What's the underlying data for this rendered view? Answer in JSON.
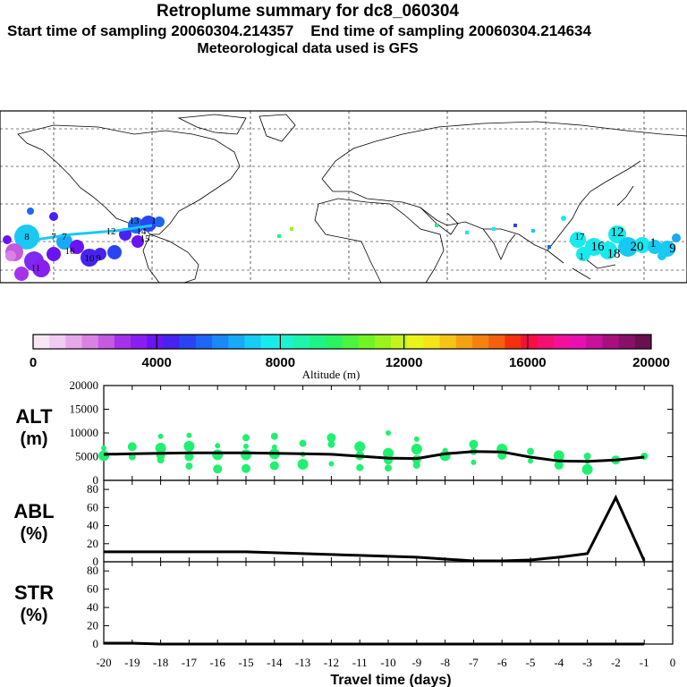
{
  "header": {
    "title": "Retroplume summary for dc8_060304",
    "start_label": "Start time of sampling 20060304.214357",
    "end_label": "End time of sampling 20060304.214634",
    "met_label": "Meteorological data used is GFS"
  },
  "colorbar": {
    "title": "Altitude (m)",
    "ticks": [
      "0",
      "4000",
      "8000",
      "12000",
      "16000",
      "20000"
    ],
    "colors": [
      "#f6e6f6",
      "#efccf0",
      "#e6a8ea",
      "#d982e4",
      "#c45ae0",
      "#a532e8",
      "#8a1ef2",
      "#6a14f4",
      "#4822f2",
      "#2a44f4",
      "#1e66f6",
      "#1a88f6",
      "#18aaf6",
      "#16ccf4",
      "#18eaee",
      "#1cf4d0",
      "#1ef4ac",
      "#20f488",
      "#2af464",
      "#4af440",
      "#70f424",
      "#9af41c",
      "#c4f41c",
      "#e8f41a",
      "#f4e418",
      "#f4c416",
      "#f4a214",
      "#f48212",
      "#f46010",
      "#f4300e",
      "#f41040",
      "#f41070",
      "#f4109a",
      "#e810b0",
      "#c8109a",
      "#a81080",
      "#881068",
      "#681050"
    ]
  },
  "map_labels": [
    "8",
    "7",
    "7",
    "16",
    "12",
    "13",
    "14",
    "15",
    "11",
    "10",
    "9",
    "1",
    "12",
    "16",
    "18",
    "20",
    "1",
    "9",
    "17",
    "1"
  ],
  "chart_data": [
    {
      "type": "scatter",
      "name": "ALT",
      "title": "",
      "ylabel": "ALT",
      "ylabel_unit": "(m)",
      "xlabel": "Travel time (days)",
      "xlim": [
        -20,
        0
      ],
      "ylim": [
        0,
        20000
      ],
      "yticks": [
        "0",
        "5000",
        "10000",
        "15000",
        "20000"
      ],
      "xticks": [
        "-20",
        "-19",
        "-18",
        "-17",
        "-16",
        "-15",
        "-14",
        "-13",
        "-12",
        "-11",
        "-10",
        "-9",
        "-8",
        "-7",
        "-6",
        "-5",
        "-4",
        "-3",
        "-2",
        "-1",
        "0"
      ],
      "median_line": {
        "x": [
          -20,
          -19,
          -18,
          -17,
          -16,
          -15,
          -14,
          -13,
          -12,
          -11,
          -10,
          -9,
          -8,
          -7,
          -6,
          -5,
          -4,
          -3,
          -2,
          -1
        ],
        "y": [
          5500,
          5600,
          5700,
          5800,
          5800,
          5800,
          5700,
          5600,
          5500,
          5100,
          4700,
          4600,
          5600,
          6100,
          6000,
          4900,
          4100,
          4000,
          4300,
          4900
        ]
      },
      "points": [
        {
          "x": -20,
          "y": 6800
        },
        {
          "x": -20,
          "y": 5200
        },
        {
          "x": -19,
          "y": 7100
        },
        {
          "x": -19,
          "y": 5000
        },
        {
          "x": -18,
          "y": 9300
        },
        {
          "x": -18,
          "y": 6800
        },
        {
          "x": -18,
          "y": 5300
        },
        {
          "x": -18,
          "y": 4300
        },
        {
          "x": -17,
          "y": 9500
        },
        {
          "x": -17,
          "y": 7200
        },
        {
          "x": -17,
          "y": 5000
        },
        {
          "x": -17,
          "y": 3000
        },
        {
          "x": -16,
          "y": 7300
        },
        {
          "x": -16,
          "y": 5400
        },
        {
          "x": -16,
          "y": 2400
        },
        {
          "x": -15,
          "y": 9000
        },
        {
          "x": -15,
          "y": 7200
        },
        {
          "x": -15,
          "y": 5400
        },
        {
          "x": -15,
          "y": 2500
        },
        {
          "x": -14,
          "y": 9300
        },
        {
          "x": -14,
          "y": 7000
        },
        {
          "x": -14,
          "y": 5600
        },
        {
          "x": -14,
          "y": 3100
        },
        {
          "x": -13,
          "y": 7800
        },
        {
          "x": -13,
          "y": 5500
        },
        {
          "x": -13,
          "y": 3400
        },
        {
          "x": -12,
          "y": 9000
        },
        {
          "x": -12,
          "y": 7600
        },
        {
          "x": -12,
          "y": 3500
        },
        {
          "x": -11,
          "y": 7100
        },
        {
          "x": -11,
          "y": 5200
        },
        {
          "x": -11,
          "y": 2700
        },
        {
          "x": -10,
          "y": 10000
        },
        {
          "x": -10,
          "y": 5700
        },
        {
          "x": -10,
          "y": 4300
        },
        {
          "x": -10,
          "y": 2600
        },
        {
          "x": -9,
          "y": 8700
        },
        {
          "x": -9,
          "y": 6600
        },
        {
          "x": -9,
          "y": 4400
        },
        {
          "x": -9,
          "y": 3200
        },
        {
          "x": -8,
          "y": 6300
        },
        {
          "x": -8,
          "y": 5200
        },
        {
          "x": -7,
          "y": 7600
        },
        {
          "x": -7,
          "y": 6100
        },
        {
          "x": -7,
          "y": 3800
        },
        {
          "x": -6,
          "y": 6600
        },
        {
          "x": -6,
          "y": 5300
        },
        {
          "x": -5,
          "y": 6100
        },
        {
          "x": -5,
          "y": 4100
        },
        {
          "x": -4,
          "y": 5200
        },
        {
          "x": -4,
          "y": 3200
        },
        {
          "x": -3,
          "y": 5100
        },
        {
          "x": -3,
          "y": 4000
        },
        {
          "x": -3,
          "y": 2300
        },
        {
          "x": -2,
          "y": 4300
        },
        {
          "x": -1,
          "y": 5100
        }
      ]
    },
    {
      "type": "line",
      "name": "ABL",
      "ylabel": "ABL",
      "ylabel_unit": "(%)",
      "xlim": [
        -20,
        0
      ],
      "ylim": [
        0,
        90
      ],
      "yticks": [
        "0",
        "20",
        "40",
        "60",
        "80"
      ],
      "x": [
        -20,
        -19,
        -18,
        -17,
        -16,
        -15,
        -14,
        -13,
        -12,
        -11,
        -10,
        -9,
        -8,
        -7,
        -6,
        -5,
        -4,
        -3,
        -2,
        -1
      ],
      "y": [
        11,
        11,
        11,
        11,
        11,
        11,
        10,
        9,
        8,
        7,
        6,
        5,
        3,
        1,
        1,
        2,
        5,
        9,
        71,
        1
      ]
    },
    {
      "type": "line",
      "name": "STR",
      "ylabel": "STR",
      "ylabel_unit": "(%)",
      "xlim": [
        -20,
        0
      ],
      "ylim": [
        0,
        90
      ],
      "yticks": [
        "0",
        "20",
        "40",
        "60",
        "80"
      ],
      "x": [
        -20,
        -19,
        -18,
        -17,
        -16,
        -15,
        -14,
        -13,
        -12,
        -11,
        -10,
        -9,
        -8,
        -7,
        -6,
        -5,
        -4,
        -3,
        -2,
        -1
      ],
      "y": [
        1,
        1,
        0,
        0,
        0,
        0,
        0,
        0,
        0,
        0,
        0,
        0,
        0,
        0,
        0,
        0,
        0,
        0,
        0,
        0
      ]
    }
  ]
}
